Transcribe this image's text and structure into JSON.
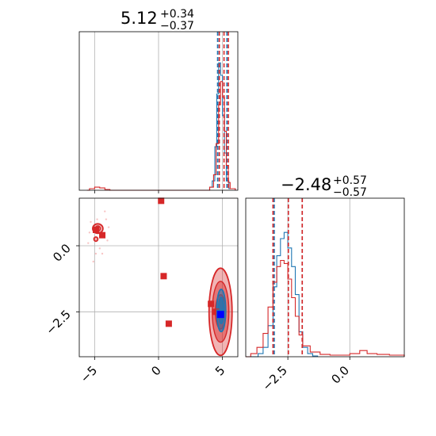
{
  "chart_data": [
    {
      "type": "histogram",
      "panel": "param1-marginal",
      "title": {
        "value": "5.12",
        "plus": "+0.34",
        "minus": "−0.37"
      },
      "xlim": [
        -6.2,
        6.2
      ],
      "grid": true,
      "show_tick_labels": false,
      "series": [
        {
          "color": "#1f77b4",
          "style": "step",
          "counts": [
            [
              3.6,
              0
            ],
            [
              4.0,
              0.02
            ],
            [
              4.2,
              0.06
            ],
            [
              4.4,
              0.28
            ],
            [
              4.55,
              0.62
            ],
            [
              4.7,
              0.82
            ],
            [
              4.85,
              0.74
            ],
            [
              5.0,
              0.48
            ],
            [
              5.15,
              0.24
            ],
            [
              5.3,
              0.06
            ],
            [
              5.5,
              0.01
            ],
            [
              6.0,
              0
            ]
          ],
          "quantile_lines": [
            4.62,
            4.75,
            5.35
          ]
        },
        {
          "color": "#d62728",
          "style": "step",
          "counts": [
            [
              -5.6,
              0
            ],
            [
              -5.4,
              0.01
            ],
            [
              -5.0,
              0.02
            ],
            [
              -4.6,
              0.015
            ],
            [
              -4.2,
              0.005
            ],
            [
              -3.8,
              0
            ],
            [
              4.0,
              0.02
            ],
            [
              4.3,
              0.1
            ],
            [
              4.5,
              0.3
            ],
            [
              4.7,
              0.55
            ],
            [
              4.85,
              0.7
            ],
            [
              5.0,
              0.6
            ],
            [
              5.15,
              0.38
            ],
            [
              5.3,
              0.16
            ],
            [
              5.45,
              0.05
            ],
            [
              5.6,
              0.01
            ],
            [
              6.0,
              0
            ]
          ],
          "quantile_lines": [
            4.75,
            5.12,
            5.46
          ]
        }
      ]
    },
    {
      "type": "scatter",
      "panel": "joint",
      "xlim": [
        -6.2,
        6.2
      ],
      "ylim": [
        -4.2,
        1.8
      ],
      "grid": true,
      "x_ticks": [
        -5,
        0,
        5
      ],
      "x_tick_labels": [
        "−5",
        "0",
        "5"
      ],
      "y_ticks": [
        -2.5,
        0.0
      ],
      "y_tick_labels": [
        "−2.5",
        "0.0"
      ],
      "series": [
        {
          "color": "#d62728",
          "marker": "square",
          "points": [
            [
              0.2,
              1.7
            ],
            [
              -4.9,
              0.6
            ],
            [
              -4.4,
              0.4
            ],
            [
              0.4,
              -1.15
            ],
            [
              0.8,
              -2.95
            ],
            [
              4.1,
              -2.2
            ],
            [
              4.5,
              -2.5
            ]
          ]
        },
        {
          "color": "#1f77b4",
          "marker": "square",
          "points": [
            [
              4.8,
              -2.55
            ]
          ]
        },
        {
          "color": "#0000ff",
          "marker": "square",
          "points": [
            [
              4.85,
              -2.6
            ]
          ]
        }
      ],
      "contours": [
        {
          "color": "#d62728",
          "cx": 4.85,
          "cy": -2.5,
          "rx": [
            0.9,
            0.65,
            0.4
          ],
          "ry": [
            1.65,
            1.15,
            0.65
          ]
        },
        {
          "color": "#1f77b4",
          "cx": 4.9,
          "cy": -2.45,
          "rx": [
            0.35,
            0.22
          ],
          "ry": [
            0.8,
            0.5
          ]
        },
        {
          "color": "#d62728",
          "cx": -4.75,
          "cy": 0.65,
          "rx": [
            0.4,
            0.2
          ],
          "ry": [
            0.18,
            0.1
          ]
        },
        {
          "color": "#d62728",
          "cx": -4.9,
          "cy": 0.25,
          "rx": [
            0.15
          ],
          "ry": [
            0.08
          ]
        }
      ]
    },
    {
      "type": "histogram",
      "panel": "param2-marginal",
      "title": {
        "value": "−2.48",
        "plus": "+0.57",
        "minus": "−0.57"
      },
      "xlim": [
        -4.2,
        2.2
      ],
      "grid": true,
      "x_ticks": [
        -2.5,
        0.0
      ],
      "x_tick_labels": [
        "−2.5",
        "0.0"
      ],
      "series": [
        {
          "color": "#1f77b4",
          "style": "step",
          "counts": [
            [
              -4.0,
              0
            ],
            [
              -3.7,
              0.02
            ],
            [
              -3.5,
              0.06
            ],
            [
              -3.3,
              0.2
            ],
            [
              -3.1,
              0.45
            ],
            [
              -2.95,
              0.65
            ],
            [
              -2.8,
              0.76
            ],
            [
              -2.65,
              0.8
            ],
            [
              -2.5,
              0.7
            ],
            [
              -2.35,
              0.58
            ],
            [
              -2.2,
              0.4
            ],
            [
              -2.05,
              0.16
            ],
            [
              -1.9,
              0.06
            ],
            [
              -1.7,
              0.02
            ],
            [
              -1.5,
              0.005
            ],
            [
              -1.3,
              0
            ]
          ],
          "quantile_lines": [
            -3.05,
            -2.48,
            -1.92
          ]
        },
        {
          "color": "#d62728",
          "style": "step",
          "counts": [
            [
              -4.2,
              0
            ],
            [
              -4.0,
              0.02
            ],
            [
              -3.75,
              0.06
            ],
            [
              -3.5,
              0.15
            ],
            [
              -3.3,
              0.32
            ],
            [
              -3.1,
              0.48
            ],
            [
              -2.95,
              0.58
            ],
            [
              -2.8,
              0.62
            ],
            [
              -2.65,
              0.6
            ],
            [
              -2.5,
              0.5
            ],
            [
              -2.35,
              0.38
            ],
            [
              -2.2,
              0.26
            ],
            [
              -2.05,
              0.14
            ],
            [
              -1.9,
              0.07
            ],
            [
              -1.6,
              0.03
            ],
            [
              -1.2,
              0.015
            ],
            [
              -0.8,
              0.01
            ],
            [
              -0.4,
              0.01
            ],
            [
              0.0,
              0.02
            ],
            [
              0.4,
              0.04
            ],
            [
              0.7,
              0.02
            ],
            [
              1.1,
              0.015
            ],
            [
              1.6,
              0.01
            ],
            [
              2.2,
              0
            ]
          ],
          "quantile_lines": [
            -3.1,
            -2.48,
            -1.92
          ]
        }
      ]
    }
  ]
}
